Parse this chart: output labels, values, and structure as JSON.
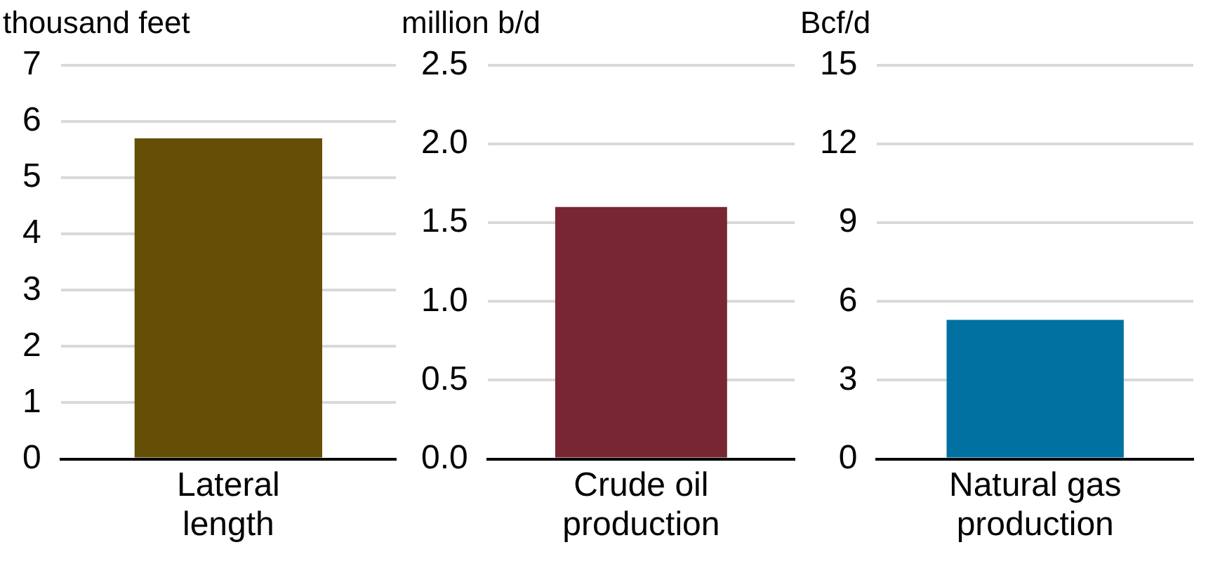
{
  "chart_data": [
    {
      "type": "bar",
      "ylabel": "thousand feet",
      "categories": [
        "Lateral length"
      ],
      "values": [
        5.7
      ],
      "color": "#654f07",
      "ylim": [
        0,
        7
      ],
      "yticks": [
        0,
        1,
        2,
        3,
        4,
        5,
        6,
        7
      ],
      "grid": "y"
    },
    {
      "type": "bar",
      "ylabel": "million b/d",
      "categories": [
        "Crude oil production"
      ],
      "values": [
        1.6
      ],
      "color": "#772632",
      "ylim": [
        0,
        2.5
      ],
      "yticks": [
        {
          "value": 0,
          "label": "0.0"
        },
        {
          "value": 0.5,
          "label": "0.5"
        },
        {
          "value": 1,
          "label": "1.0"
        },
        {
          "value": 1.5,
          "label": "1.5"
        },
        {
          "value": 2,
          "label": "2.0"
        },
        {
          "value": 2.5,
          "label": "2.5"
        }
      ],
      "grid": "y"
    },
    {
      "type": "bar",
      "ylabel": "Bcf/d",
      "categories": [
        "Natural gas production"
      ],
      "values": [
        5.3
      ],
      "color": "#0071a1",
      "ylim": [
        0,
        15
      ],
      "yticks": [
        0,
        3,
        6,
        9,
        12,
        15
      ],
      "grid": "y"
    }
  ]
}
